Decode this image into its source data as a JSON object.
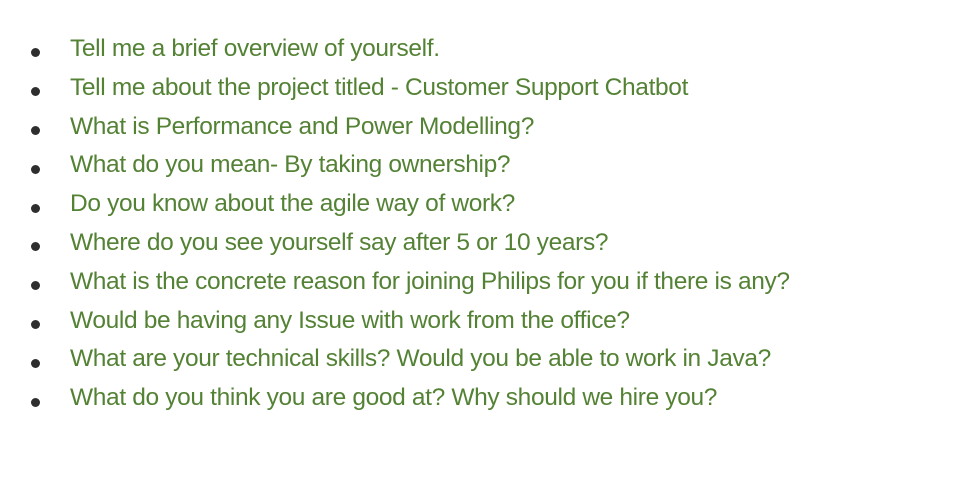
{
  "document": {
    "text_color": "#548235",
    "bullet_color": "#2e2e2e",
    "items": [
      "Tell me a brief overview of yourself.",
      "Tell me about the project titled - Customer Support Chatbot",
      "What is Performance and Power Modelling?",
      "What do you mean- By taking ownership?",
      "Do you know about the agile way of work?",
      "Where do you see yourself say after 5 or 10 years?",
      "What is the concrete reason for joining Philips for you if there is any?",
      "Would be having any Issue with work from the office?",
      "What are your technical skills? Would you be able to work in Java?",
      "What do you think you are good at? Why should we hire you?"
    ]
  }
}
